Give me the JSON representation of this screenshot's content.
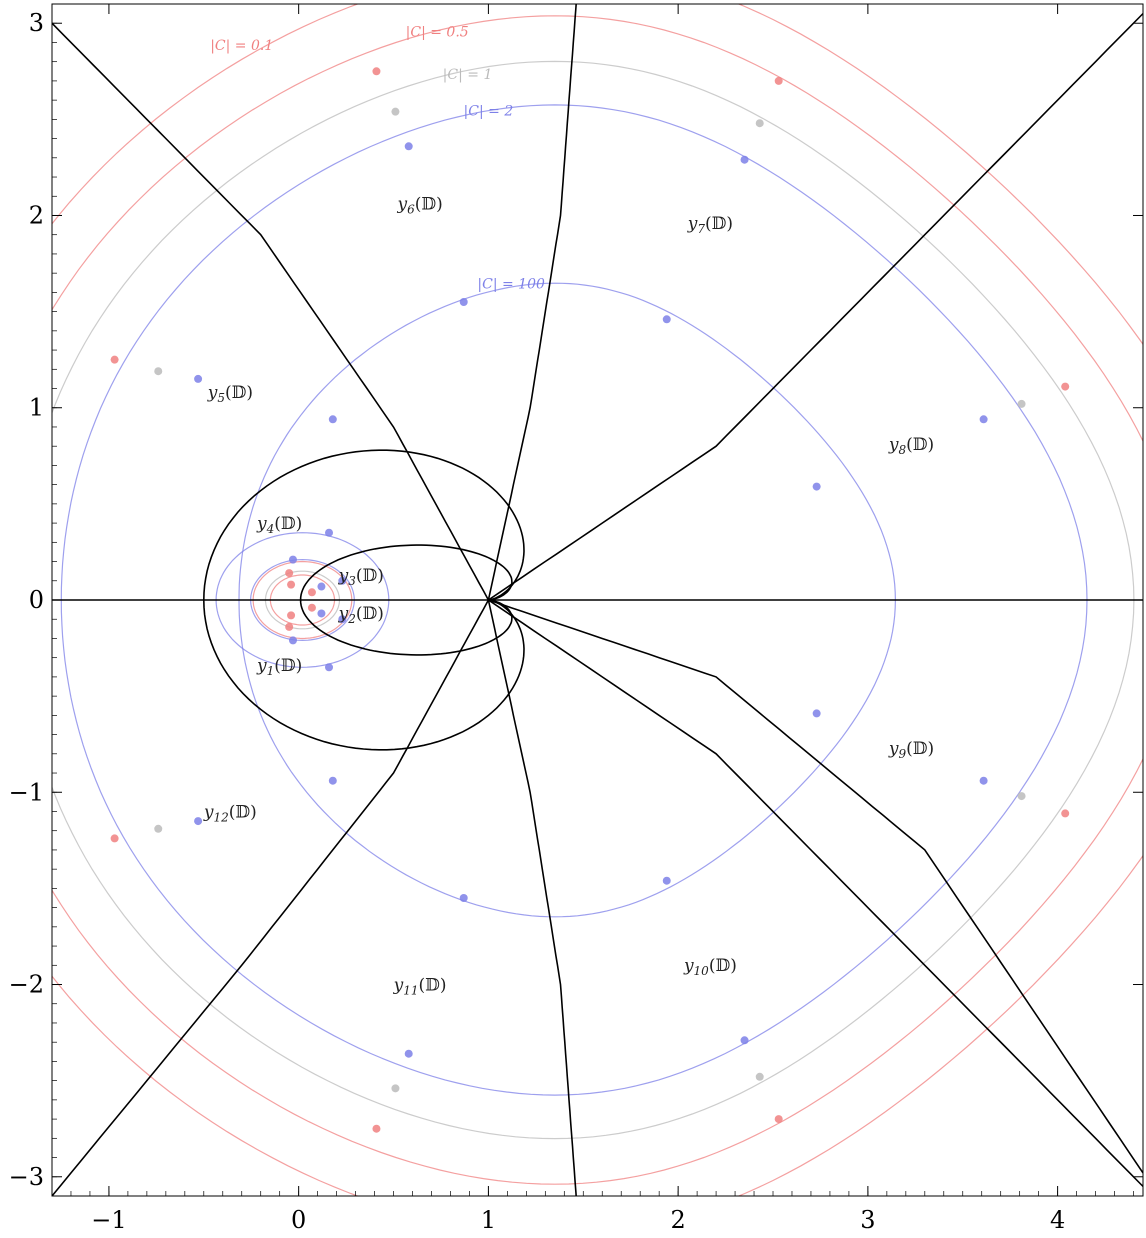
{
  "chart_data": {
    "type": "line",
    "x_axis": {
      "range": [
        -1.3,
        4.45
      ],
      "ticks": [
        -1,
        0,
        1,
        2,
        3,
        4
      ],
      "tick_labels": [
        "−1",
        "0",
        "1",
        "2",
        "3",
        "4"
      ]
    },
    "y_axis": {
      "range": [
        -3.1,
        3.1
      ],
      "ticks": [
        -3,
        -2,
        -1,
        0,
        1,
        2,
        3
      ],
      "tick_labels": [
        "−3",
        "−2",
        "−1",
        "0",
        "1",
        "2",
        "3"
      ]
    },
    "grid": false,
    "colors": {
      "c01": "#f7a1a1",
      "c05": "#f7a1a1",
      "c1": "#d4d4d4",
      "c2": "#a9abf3",
      "c100": "#a9abf3",
      "boundary": "#000000"
    },
    "level_curves": [
      {
        "label": "|C| = 0.1",
        "label_at": [
          -0.3,
          2.86
        ],
        "color": "#f08080",
        "outer_radius": 3.2,
        "inner_radius": 0.2
      },
      {
        "label": "|C| = 0.5",
        "label_at": [
          0.73,
          2.93
        ],
        "color": "#f08080",
        "outer_radius": 2.95,
        "inner_radius": 0.13,
        "points": [
          [
            0.41,
            2.75
          ],
          [
            2.53,
            2.7
          ],
          [
            4.04,
            1.11
          ],
          [
            4.04,
            -1.11
          ],
          [
            2.53,
            -2.7
          ],
          [
            0.41,
            -2.75
          ],
          [
            -0.97,
            -1.24
          ],
          [
            -0.97,
            1.25
          ],
          [
            -0.05,
            0.14
          ],
          [
            -0.05,
            -0.14
          ],
          [
            -0.04,
            0.08
          ],
          [
            -0.04,
            -0.08
          ],
          [
            0.07,
            0.04
          ],
          [
            0.07,
            -0.04
          ]
        ]
      },
      {
        "label": "|C| = 1",
        "label_at": [
          0.89,
          2.71
        ],
        "color": "#bbbbbb",
        "outer_radius": 2.72,
        "inner_radius": 0.15,
        "points": [
          [
            0.51,
            2.54
          ],
          [
            2.43,
            2.48
          ],
          [
            3.81,
            1.02
          ],
          [
            3.81,
            -1.02
          ],
          [
            2.43,
            -2.48
          ],
          [
            0.51,
            -2.54
          ],
          [
            -0.74,
            -1.19
          ],
          [
            -0.74,
            1.19
          ]
        ]
      },
      {
        "label": "|C| = 2",
        "label_at": [
          1.0,
          2.52
        ],
        "color": "#7d80e8",
        "outer_radius": 2.5,
        "inner_radius": 0.21,
        "points": [
          [
            0.58,
            2.36
          ],
          [
            2.35,
            2.29
          ],
          [
            3.61,
            0.94
          ],
          [
            3.61,
            -0.94
          ],
          [
            2.35,
            -2.29
          ],
          [
            0.58,
            -2.36
          ],
          [
            -0.53,
            -1.15
          ],
          [
            -0.53,
            1.15
          ],
          [
            -0.03,
            0.21
          ],
          [
            -0.03,
            -0.21
          ]
        ]
      },
      {
        "label": "|C| = 100",
        "label_at": [
          1.12,
          1.62
        ],
        "color": "#7d80e8",
        "outer_radius": 1.6,
        "inner_radius": 0.35,
        "points": [
          [
            0.87,
            1.55
          ],
          [
            1.94,
            1.46
          ],
          [
            2.73,
            0.59
          ],
          [
            2.73,
            -0.59
          ],
          [
            1.94,
            -1.46
          ],
          [
            0.87,
            -1.55
          ],
          [
            0.18,
            -0.94
          ],
          [
            0.18,
            0.94
          ],
          [
            0.16,
            0.35
          ],
          [
            0.16,
            -0.35
          ],
          [
            0.23,
            0.1
          ],
          [
            0.23,
            -0.1
          ],
          [
            0.12,
            0.07
          ],
          [
            0.12,
            -0.07
          ]
        ]
      }
    ],
    "regions": [
      {
        "label": "y",
        "sub": "1",
        "at": [
          -0.1,
          -0.37
        ]
      },
      {
        "label": "y",
        "sub": "2",
        "at": [
          0.33,
          -0.1
        ]
      },
      {
        "label": "y",
        "sub": "3",
        "at": [
          0.33,
          0.1
        ]
      },
      {
        "label": "y",
        "sub": "4",
        "at": [
          -0.1,
          0.37
        ]
      },
      {
        "label": "y",
        "sub": "5",
        "at": [
          -0.36,
          1.05
        ]
      },
      {
        "label": "y",
        "sub": "6",
        "at": [
          0.64,
          2.03
        ]
      },
      {
        "label": "y",
        "sub": "7",
        "at": [
          2.17,
          1.93
        ]
      },
      {
        "label": "y",
        "sub": "8",
        "at": [
          3.23,
          0.78
        ]
      },
      {
        "label": "y",
        "sub": "9",
        "at": [
          3.23,
          -0.8
        ]
      },
      {
        "label": "y",
        "sub": "10",
        "at": [
          2.17,
          -1.93
        ]
      },
      {
        "label": "y",
        "sub": "11",
        "at": [
          0.64,
          -2.03
        ]
      },
      {
        "label": "y",
        "sub": "12",
        "at": [
          -0.36,
          -1.13
        ]
      }
    ],
    "region_symbol": "(𝔻)"
  }
}
